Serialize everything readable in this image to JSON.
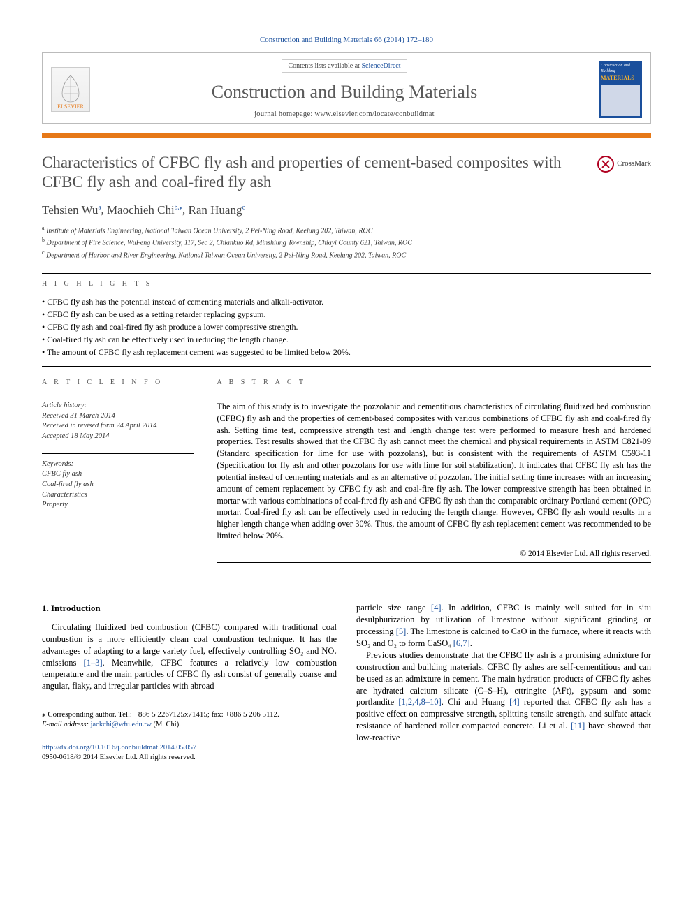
{
  "citation": "Construction and Building Materials 66 (2014) 172–180",
  "contents_prefix": "Contents lists available at ",
  "contents_link": "ScienceDirect",
  "journal_name": "Construction and Building Materials",
  "journal_homepage": "journal homepage: www.elsevier.com/locate/conbuildmat",
  "publisher_logo_text": "ELSEVIER",
  "cover_small": {
    "line1": "Construction and Building",
    "line2": "MATERIALS"
  },
  "crossmark_label": "CrossMark",
  "title": "Characteristics of CFBC fly ash and properties of cement-based composites with CFBC fly ash and coal-fired fly ash",
  "authors_html_parts": {
    "a1": "Tehsien Wu",
    "s1": "a",
    "a2": "Maochieh Chi",
    "s2": "b,",
    "corr": "⁎",
    "a3": "Ran Huang",
    "s3": "c"
  },
  "affiliations": [
    {
      "sup": "a",
      "text": "Institute of Materials Engineering, National Taiwan Ocean University, 2 Pei-Ning Road, Keelung 202, Taiwan, ROC"
    },
    {
      "sup": "b",
      "text": "Department of Fire Science, WuFeng University, 117, Sec 2, Chiankuo Rd, Minshiung Township, Chiayi County 621, Taiwan, ROC"
    },
    {
      "sup": "c",
      "text": "Department of Harbor and River Engineering, National Taiwan Ocean University, 2 Pei-Ning Road, Keelung 202, Taiwan, ROC"
    }
  ],
  "highlights_label": "H I G H L I G H T S",
  "highlights": [
    "CFBC fly ash has the potential instead of cementing materials and alkali-activator.",
    "CFBC fly ash can be used as a setting retarder replacing gypsum.",
    "CFBC fly ash and coal-fired fly ash produce a lower compressive strength.",
    "Coal-fired fly ash can be effectively used in reducing the length change.",
    "The amount of CFBC fly ash replacement cement was suggested to be limited below 20%."
  ],
  "article_info_label": "A R T I C L E   I N F O",
  "abstract_label": "A B S T R A C T",
  "history_label": "Article history:",
  "history": [
    "Received 31 March 2014",
    "Received in revised form 24 April 2014",
    "Accepted 18 May 2014"
  ],
  "keywords_label": "Keywords:",
  "keywords": [
    "CFBC fly ash",
    "Coal-fired fly ash",
    "Characteristics",
    "Property"
  ],
  "abstract_text": "The aim of this study is to investigate the pozzolanic and cementitious characteristics of circulating fluidized bed combustion (CFBC) fly ash and the properties of cement-based composites with various combinations of CFBC fly ash and coal-fired fly ash. Setting time test, compressive strength test and length change test were performed to measure fresh and hardened properties. Test results showed that the CFBC fly ash cannot meet the chemical and physical requirements in ASTM C821-09 (Standard specification for lime for use with pozzolans), but is consistent with the requirements of ASTM C593-11 (Specification for fly ash and other pozzolans for use with lime for soil stabilization). It indicates that CFBC fly ash has the potential instead of cementing materials and as an alternative of pozzolan. The initial setting time increases with an increasing amount of cement replacement by CFBC fly ash and coal-fire fly ash. The lower compressive strength has been obtained in mortar with various combinations of coal-fired fly ash and CFBC fly ash than the comparable ordinary Portland cement (OPC) mortar. Coal-fired fly ash can be effectively used in reducing the length change. However, CFBC fly ash would results in a higher length change when adding over 30%. Thus, the amount of CFBC fly ash replacement cement was recommended to be limited below 20%.",
  "copyright": "© 2014 Elsevier Ltd. All rights reserved.",
  "intro_heading": "1. Introduction",
  "intro_p1_a": "Circulating fluidized bed combustion (CFBC) compared with traditional coal combustion is a more efficiently clean coal combustion technique. It has the advantages of adapting to a large variety fuel, effectively controlling SO₂ and NOₓ emissions ",
  "intro_p1_ref1": "[1–3]",
  "intro_p1_b": ". Meanwhile, CFBC features a relatively low combustion temperature and the main particles of CFBC fly ash consist of generally coarse and angular, flaky, and irregular particles with abroad",
  "col2_p1_a": "particle size range ",
  "col2_p1_ref1": "[4]",
  "col2_p1_b": ". In addition, CFBC is mainly well suited for in situ desulphurization by utilization of limestone without significant grinding or processing ",
  "col2_p1_ref2": "[5]",
  "col2_p1_c": ". The limestone is calcined to CaO in the furnace, where it reacts with SO₂ and O₂ to form CaSO₄ ",
  "col2_p1_ref3": "[6,7]",
  "col2_p1_d": ".",
  "col2_p2_a": "Previous studies demonstrate that the CFBC fly ash is a promising admixture for construction and building materials. CFBC fly ashes are self-cementitious and can be used as an admixture in cement. The main hydration products of CFBC fly ashes are hydrated calcium silicate (C–S–H), ettringite (AFt), gypsum and some portlandite ",
  "col2_p2_ref1": "[1,2,4,8–10]",
  "col2_p2_b": ". Chi and Huang ",
  "col2_p2_ref2": "[4]",
  "col2_p2_c": " reported that CFBC fly ash has a positive effect on compressive strength, splitting tensile strength, and sulfate attack resistance of hardened roller compacted concrete. Li et al. ",
  "col2_p2_ref3": "[11]",
  "col2_p2_d": " have showed that low-reactive",
  "corresponding": {
    "line1": "⁎ Corresponding author. Tel.: +886 5 2267125x71415; fax: +886 5 206 5112.",
    "line2_a": "E-mail address: ",
    "email": "jackchi@wfu.edu.tw",
    "line2_b": " (M. Chi)."
  },
  "doi_url": "http://dx.doi.org/10.1016/j.conbuildmat.2014.05.057",
  "issn_line": "0950-0618/© 2014 Elsevier Ltd. All rights reserved.",
  "colors": {
    "link": "#1a4f9c",
    "orange": "#e67817",
    "grey_text": "#505050"
  }
}
